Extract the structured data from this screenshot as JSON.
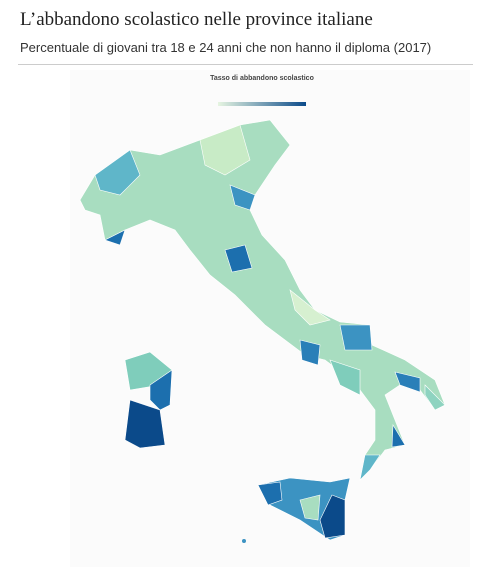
{
  "header": {
    "title": "L’abbandono scolastico nelle province italiane",
    "subtitle": "Percentuale di giovani tra 18 e 24 anni che non hanno il diploma (2017)"
  },
  "map": {
    "legend_title": "Tasso di abbandono scolastico"
  }
}
